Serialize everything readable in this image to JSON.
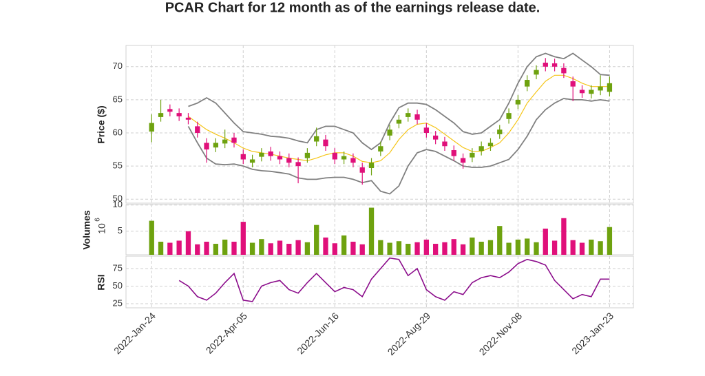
{
  "chart_data": {
    "type": "candlestick",
    "title": "PCAR Chart for 12 month as of the earnings release date.",
    "x": [
      0,
      5,
      10,
      15,
      20,
      25,
      30,
      35,
      40,
      45,
      50,
      55,
      60,
      65,
      70,
      75,
      80,
      85,
      90,
      95,
      100,
      105,
      110,
      115,
      120,
      125,
      130,
      135,
      140,
      145,
      150,
      155,
      160,
      165,
      170,
      175,
      180,
      185,
      190,
      195,
      200,
      205,
      210,
      215,
      220,
      225,
      230,
      235,
      240,
      245,
      250
    ],
    "xlim": [
      -14,
      263
    ],
    "xticks": [
      {
        "value": 0,
        "label": "2022-Jan-24"
      },
      {
        "value": 50,
        "label": "2022-Apr-05"
      },
      {
        "value": 100,
        "label": "2022-Jun-16"
      },
      {
        "value": 150,
        "label": "2022-Aug-29"
      },
      {
        "value": 200,
        "label": "2022-Nov-08"
      },
      {
        "value": 250,
        "label": "2023-Jan-23"
      }
    ],
    "grid": true,
    "up_color": "#6ea20f",
    "down_color": "#e0107a",
    "open": [
      60.2,
      62.4,
      63.6,
      63,
      62.3,
      61,
      58.5,
      57.8,
      58.4,
      59.3,
      56.8,
      55.5,
      56.4,
      57.2,
      56.5,
      56.2,
      55.6,
      56.2,
      58.7,
      59,
      57,
      56,
      56.2,
      54.8,
      54.7,
      57.2,
      59.6,
      61.4,
      62.4,
      62.8,
      60.8,
      59.6,
      58.7,
      57.4,
      56.2,
      56.3,
      57.3,
      58,
      59.8,
      62.1,
      64.3,
      67,
      68.8,
      70.6,
      70.5,
      69.8,
      67.8,
      66.5,
      65.9,
      66.4,
      66.2
    ],
    "high": [
      62.8,
      65.0,
      64.3,
      63.7,
      63.0,
      61.7,
      59.2,
      59.2,
      60.5,
      60.0,
      57.5,
      56.7,
      57.7,
      57.9,
      57.2,
      56.9,
      56.3,
      57.7,
      60.8,
      59.7,
      57.7,
      57.2,
      56.9,
      55.5,
      56.2,
      58.7,
      61.2,
      62.7,
      63.7,
      63.5,
      61.5,
      60.3,
      59.4,
      58.1,
      56.9,
      57.7,
      58.7,
      59.2,
      61.2,
      63.7,
      65.7,
      68.7,
      70.2,
      71.3,
      71.2,
      70.5,
      68.5,
      67.2,
      67.2,
      68.7,
      68.5
    ],
    "low": [
      58.6,
      61.7,
      62.5,
      61.8,
      61.3,
      59.3,
      55.5,
      57.1,
      57.7,
      57.8,
      55.3,
      54.8,
      55.7,
      55.8,
      55.3,
      54.8,
      52.4,
      55.5,
      58.0,
      57.3,
      55.3,
      55.3,
      54.8,
      52.2,
      53.6,
      56.5,
      58.9,
      60.7,
      61.7,
      61.3,
      59.3,
      58.3,
      57.3,
      55.8,
      54.6,
      55.6,
      56.6,
      57.3,
      59.1,
      61.4,
      63.6,
      66.3,
      68.1,
      69.3,
      69.3,
      68.3,
      64.8,
      65.3,
      65.2,
      65.7,
      65.5
    ],
    "close": [
      61.5,
      63,
      63.2,
      62.5,
      62,
      60,
      57.5,
      58.5,
      59,
      58.5,
      56,
      56,
      57,
      56.5,
      56,
      55.5,
      55,
      57,
      59.5,
      58,
      56,
      56.5,
      55.5,
      54,
      55.5,
      58,
      60.5,
      62,
      63,
      62,
      60,
      59,
      58,
      56.5,
      55.5,
      57,
      58,
      58.5,
      60.5,
      63,
      65,
      68,
      69.5,
      70,
      70,
      69,
      67,
      66,
      66.5,
      67,
      67.5
    ],
    "price": {
      "ylabel": "Price ($)",
      "ylim": [
        49.4,
        73.2
      ],
      "yticks": [
        50,
        55,
        60,
        65,
        70
      ],
      "sma": {
        "color": "#f5c518",
        "values": [
          null,
          null,
          null,
          null,
          62.5,
          61.5,
          60.5,
          59.8,
          59.2,
          58.5,
          57.7,
          57.2,
          57,
          56.8,
          56.5,
          56.2,
          56,
          55.8,
          56.2,
          56.7,
          57,
          57,
          56.5,
          55.7,
          55.5,
          55.8,
          57,
          59,
          60.5,
          61.3,
          61.5,
          60.8,
          59.8,
          58.8,
          57.8,
          57.2,
          57.2,
          57.8,
          58.5,
          60,
          62,
          64.5,
          66.2,
          67.8,
          68.7,
          68.7,
          68.2,
          67.5,
          67,
          67,
          67
        ]
      },
      "upper": {
        "color": "#808080",
        "values": [
          null,
          null,
          null,
          null,
          64,
          64.5,
          65.3,
          64.5,
          63,
          61.5,
          60.2,
          60,
          59.8,
          59.5,
          59.4,
          59.2,
          58.8,
          58.5,
          60.5,
          61,
          61,
          60.5,
          60,
          58.5,
          57.5,
          58.5,
          61.5,
          63.8,
          64.5,
          64.5,
          64.3,
          63.5,
          62.5,
          61.5,
          60.2,
          59.8,
          60,
          61,
          62,
          64.5,
          67.5,
          70,
          71.5,
          72,
          71.5,
          71.2,
          72,
          71,
          70,
          68.8,
          68.7
        ]
      },
      "lower": {
        "color": "#808080",
        "values": [
          null,
          null,
          null,
          null,
          61,
          58.5,
          56.2,
          55.3,
          55.2,
          55.3,
          55,
          54.5,
          54.3,
          54.2,
          54,
          53.8,
          53.2,
          53,
          53,
          53.2,
          53.3,
          53.3,
          53,
          52.5,
          52.8,
          51.2,
          50.8,
          52,
          55,
          57,
          57.5,
          57.2,
          56.5,
          55.8,
          55,
          54.8,
          54.8,
          55,
          55.5,
          56,
          57.5,
          59.5,
          62,
          63.5,
          64.5,
          65.2,
          65,
          65,
          64.8,
          65,
          64.8
        ]
      }
    },
    "volume": {
      "ylabel": "Volumes",
      "scale_base": "10",
      "scale_exponent": "6",
      "ylim": [
        0.5,
        10.1
      ],
      "yticks": [
        5,
        10
      ],
      "values": [
        7,
        3,
        2.8,
        3.2,
        5,
        2.5,
        3,
        2.6,
        3.4,
        3,
        6.8,
        2.8,
        3.5,
        2.7,
        3.2,
        2.6,
        3.3,
        2.9,
        6.2,
        3.8,
        2.7,
        4.2,
        3,
        2.5,
        9.5,
        3.3,
        2.8,
        3.1,
        2.6,
        2.9,
        3.4,
        2.6,
        2.9,
        3.5,
        2.5,
        3.8,
        3,
        3.3,
        6,
        2.8,
        3.4,
        3.6,
        2.9,
        5.5,
        3.2,
        7.5,
        3.3,
        2.8,
        3.4,
        3.1,
        5.8
      ]
    },
    "rsi": {
      "ylabel": "RSI",
      "ylim": [
        19.1,
        92.6
      ],
      "yticks": [
        25,
        50,
        75
      ],
      "color": "#8b0c8b",
      "values": [
        null,
        null,
        null,
        58,
        50,
        35,
        30,
        40,
        55,
        68,
        30,
        28,
        50,
        55,
        58,
        45,
        40,
        55,
        68,
        55,
        42,
        48,
        45,
        35,
        60,
        75,
        90,
        88,
        65,
        75,
        45,
        35,
        30,
        42,
        38,
        55,
        62,
        65,
        62,
        70,
        82,
        88,
        85,
        80,
        58,
        45,
        32,
        38,
        35,
        60,
        60
      ]
    }
  }
}
